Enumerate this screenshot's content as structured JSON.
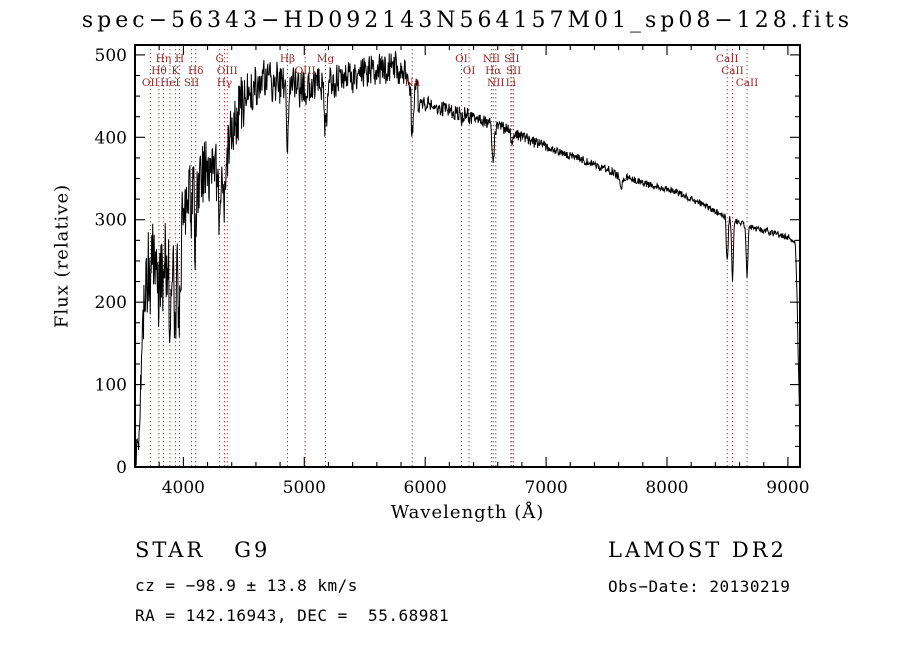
{
  "chart_data": {
    "type": "line",
    "title": "spec−56343−HD092143N564157M01_sp08−128.fits",
    "xlabel": "Wavelength (Å)",
    "ylabel": "Flux (relative)",
    "xlim": [
      3600,
      9100
    ],
    "ylim": [
      0,
      512
    ],
    "xticks": [
      4000,
      5000,
      6000,
      7000,
      8000,
      9000
    ],
    "yticks": [
      0,
      100,
      200,
      300,
      400,
      500
    ],
    "x_minor_step": 200,
    "y_minor_step": 25,
    "sample_start": 3610,
    "sample_step": 4,
    "legend": "none",
    "grid": false,
    "continuum": [
      [
        3600,
        2
      ],
      [
        3615,
        6
      ],
      [
        3635,
        60
      ],
      [
        3655,
        140
      ],
      [
        3675,
        200
      ],
      [
        3695,
        235
      ],
      [
        3720,
        248
      ],
      [
        3760,
        255
      ],
      [
        3800,
        250
      ],
      [
        3850,
        256
      ],
      [
        3900,
        258
      ],
      [
        3950,
        262
      ],
      [
        4000,
        300
      ],
      [
        4050,
        332
      ],
      [
        4100,
        350
      ],
      [
        4150,
        358
      ],
      [
        4200,
        364
      ],
      [
        4250,
        364
      ],
      [
        4300,
        360
      ],
      [
        4350,
        384
      ],
      [
        4400,
        410
      ],
      [
        4450,
        430
      ],
      [
        4500,
        447
      ],
      [
        4550,
        457
      ],
      [
        4600,
        463
      ],
      [
        4650,
        468
      ],
      [
        4700,
        470
      ],
      [
        4750,
        468
      ],
      [
        4800,
        466
      ],
      [
        4850,
        465
      ],
      [
        4900,
        466
      ],
      [
        4950,
        463
      ],
      [
        5000,
        462
      ],
      [
        5050,
        464
      ],
      [
        5100,
        466
      ],
      [
        5150,
        465
      ],
      [
        5200,
        466
      ],
      [
        5300,
        469
      ],
      [
        5400,
        473
      ],
      [
        5500,
        477
      ],
      [
        5600,
        481
      ],
      [
        5700,
        484
      ],
      [
        5750,
        485
      ],
      [
        5800,
        483
      ],
      [
        5850,
        478
      ],
      [
        5900,
        462
      ],
      [
        5950,
        448
      ],
      [
        6000,
        441
      ],
      [
        6100,
        436
      ],
      [
        6200,
        432
      ],
      [
        6300,
        428
      ],
      [
        6400,
        424
      ],
      [
        6500,
        419
      ],
      [
        6600,
        414
      ],
      [
        6700,
        408
      ],
      [
        6800,
        401
      ],
      [
        6900,
        394
      ],
      [
        7000,
        388
      ],
      [
        7100,
        383
      ],
      [
        7200,
        378
      ],
      [
        7300,
        372
      ],
      [
        7400,
        367
      ],
      [
        7500,
        362
      ],
      [
        7600,
        355
      ],
      [
        7700,
        350
      ],
      [
        7800,
        345
      ],
      [
        7900,
        340
      ],
      [
        8000,
        338
      ],
      [
        8100,
        332
      ],
      [
        8200,
        325
      ],
      [
        8300,
        318
      ],
      [
        8400,
        310
      ],
      [
        8500,
        303
      ],
      [
        8600,
        297
      ],
      [
        8700,
        291
      ],
      [
        8800,
        287
      ],
      [
        8900,
        283
      ],
      [
        9000,
        279
      ],
      [
        9040,
        276
      ],
      [
        9060,
        271
      ],
      [
        9075,
        215
      ],
      [
        9088,
        110
      ],
      [
        9100,
        55
      ]
    ],
    "absorption_features": [
      [
        3727,
        40,
        6
      ],
      [
        3798,
        48,
        7
      ],
      [
        3835,
        58,
        7
      ],
      [
        3889,
        62,
        7
      ],
      [
        3934,
        110,
        9
      ],
      [
        3969,
        100,
        9
      ],
      [
        4068,
        30,
        6
      ],
      [
        4102,
        85,
        9
      ],
      [
        4300,
        48,
        14
      ],
      [
        4340,
        60,
        9
      ],
      [
        4363,
        14,
        5
      ],
      [
        4861,
        72,
        9
      ],
      [
        4959,
        9,
        5
      ],
      [
        5007,
        10,
        5
      ],
      [
        5175,
        55,
        11
      ],
      [
        5893,
        62,
        9
      ],
      [
        6300,
        9,
        5
      ],
      [
        6363,
        7,
        5
      ],
      [
        6548,
        9,
        5
      ],
      [
        6563,
        48,
        8
      ],
      [
        6584,
        9,
        5
      ],
      [
        6708,
        6,
        4
      ],
      [
        6717,
        9,
        5
      ],
      [
        6731,
        9,
        5
      ],
      [
        7620,
        14,
        14
      ],
      [
        8498,
        55,
        7
      ],
      [
        8542,
        72,
        7
      ],
      [
        8662,
        65,
        7
      ]
    ],
    "noise_regions": [
      [
        3600,
        3700,
        30
      ],
      [
        3700,
        4000,
        52
      ],
      [
        4000,
        4300,
        42
      ],
      [
        4300,
        4500,
        36
      ],
      [
        4500,
        4800,
        26
      ],
      [
        4800,
        5400,
        20
      ],
      [
        5400,
        5950,
        20
      ],
      [
        5950,
        6400,
        10
      ],
      [
        6400,
        7000,
        7
      ],
      [
        7000,
        7600,
        5
      ],
      [
        7600,
        8400,
        4
      ],
      [
        8400,
        9055,
        4
      ],
      [
        9055,
        9100,
        8
      ]
    ],
    "spectral_lines": [
      {
        "wavelength": 3727,
        "label": "OII",
        "row": 3
      },
      {
        "wavelength": 3798,
        "label": "Hθ",
        "row": 2
      },
      {
        "wavelength": 3835,
        "label": "Hη",
        "row": 1
      },
      {
        "wavelength": 3889,
        "label": "HeI",
        "row": 3
      },
      {
        "wavelength": 3934,
        "label": "K",
        "row": 2
      },
      {
        "wavelength": 3969,
        "label": "H",
        "row": 1
      },
      {
        "wavelength": 4068,
        "label": "SII",
        "row": 3
      },
      {
        "wavelength": 4102,
        "label": "Hδ",
        "row": 2
      },
      {
        "wavelength": 4300,
        "label": "G",
        "row": 1
      },
      {
        "wavelength": 4340,
        "label": "Hγ",
        "row": 3
      },
      {
        "wavelength": 4363,
        "label": "OIII",
        "row": 2
      },
      {
        "wavelength": 4861,
        "label": "Hβ",
        "row": 1
      },
      {
        "wavelength": 5007,
        "label": "OIII",
        "row": 2
      },
      {
        "wavelength": 5175,
        "label": "Mg",
        "row": 1
      },
      {
        "wavelength": 5893,
        "label": "Na",
        "row": 3
      },
      {
        "wavelength": 6300,
        "label": "OI",
        "row": 1
      },
      {
        "wavelength": 6363,
        "label": "OI",
        "row": 2
      },
      {
        "wavelength": 6548,
        "label": "NII",
        "row": 1
      },
      {
        "wavelength": 6563,
        "label": "Hα",
        "row": 2
      },
      {
        "wavelength": 6584,
        "label": "NII",
        "row": 3
      },
      {
        "wavelength": 6708,
        "label": "Li",
        "row": 3
      },
      {
        "wavelength": 6717,
        "label": "SII",
        "row": 1
      },
      {
        "wavelength": 6731,
        "label": "SII",
        "row": 2
      },
      {
        "wavelength": 8498,
        "label": "CaII",
        "row": 1
      },
      {
        "wavelength": 8542,
        "label": "CaII",
        "row": 2
      },
      {
        "wavelength": 8662,
        "label": "CaII",
        "row": 3
      }
    ]
  },
  "annotations": {
    "class_label": "STAR   G9",
    "survey": "LAMOST DR2",
    "cz": "cz = −98.9 ± 13.8 km/s",
    "obs_date": "Obs−Date: 20130219",
    "coords": "RA = 142.16943, DEC =  55.68981"
  },
  "colors": {
    "background": "#ffffff",
    "spectrum": "#000000",
    "frame": "#000000",
    "line_marker": "#9b4a4a",
    "line_label": "#8b2a2a",
    "text": "#000000"
  }
}
